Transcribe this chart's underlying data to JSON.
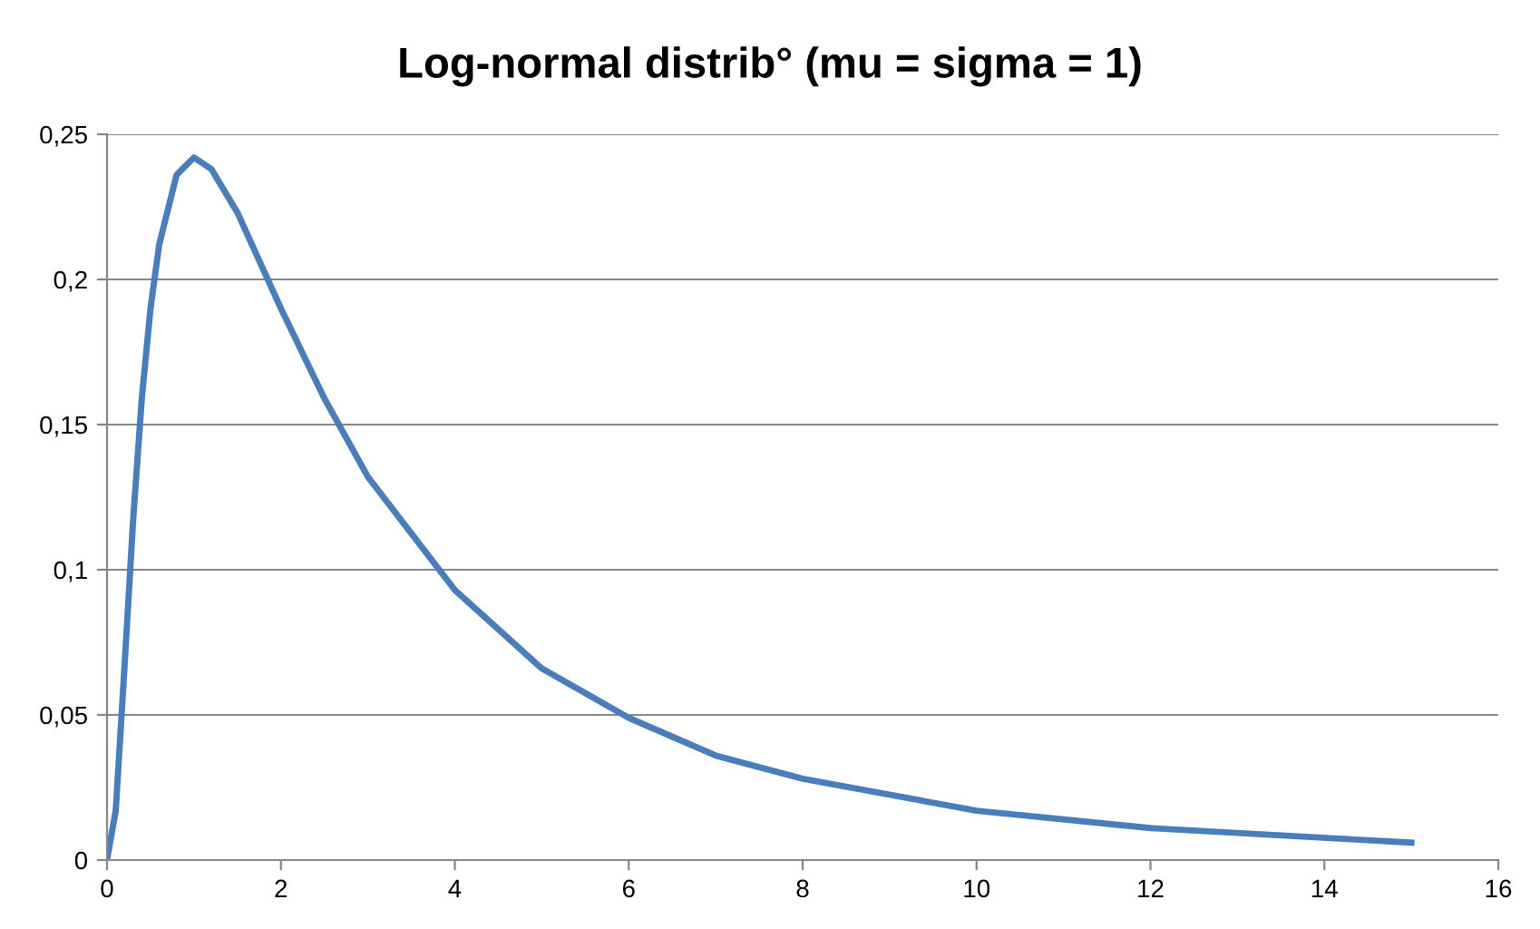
{
  "chart_data": {
    "type": "line",
    "title": "Log-normal distrib° (mu = sigma = 1)",
    "series": [
      {
        "color": "#4a7ebb",
        "x": [
          0,
          0.1,
          0.2,
          0.3,
          0.4,
          0.5,
          0.6,
          0.8,
          1,
          1.2,
          1.5,
          2,
          2.5,
          3,
          4,
          5,
          6,
          7,
          8,
          10,
          12,
          15
        ],
        "values": [
          0,
          0.017,
          0.066,
          0.117,
          0.159,
          0.19,
          0.212,
          0.236,
          0.242,
          0.238,
          0.223,
          0.19,
          0.159,
          0.132,
          0.093,
          0.066,
          0.049,
          0.036,
          0.028,
          0.017,
          0.011,
          0.006
        ]
      }
    ],
    "xlim": [
      0,
      16
    ],
    "xticks": [
      0,
      2,
      4,
      6,
      8,
      10,
      12,
      14,
      16
    ],
    "ylim": [
      0,
      0.25
    ],
    "yticks": [
      {
        "value": 0,
        "label": "0"
      },
      {
        "value": 0.05,
        "label": "0,05"
      },
      {
        "value": 0.1,
        "label": "0,1"
      },
      {
        "value": 0.15,
        "label": "0,15"
      },
      {
        "value": 0.2,
        "label": "0,2"
      },
      {
        "value": 0.25,
        "label": "0,25"
      }
    ],
    "grid": "y",
    "legend": false,
    "marker": "none",
    "line_style": "solid"
  }
}
